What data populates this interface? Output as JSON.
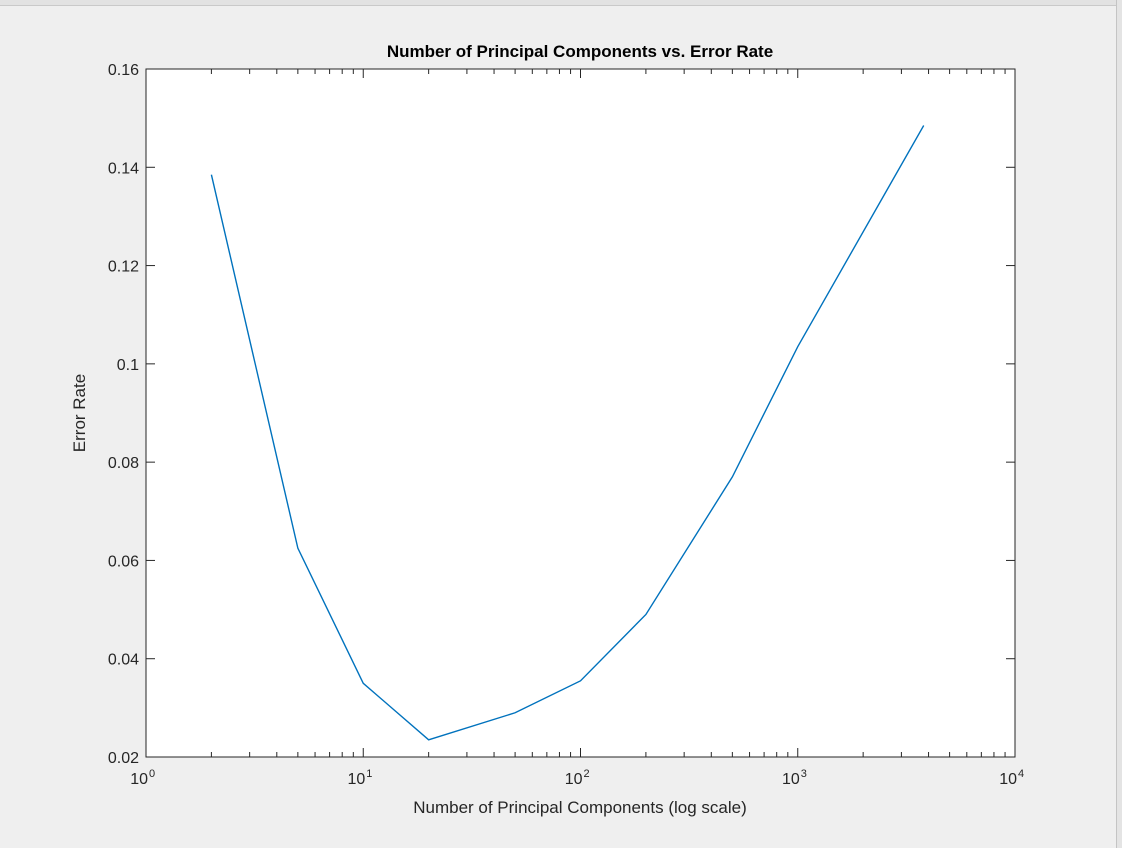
{
  "chart_data": {
    "type": "line",
    "title": "Number of Principal Components vs. Error Rate",
    "xlabel": "Number of Principal Components (log scale)",
    "ylabel": "Error Rate",
    "x_scale": "log",
    "xlim": [
      1,
      10000
    ],
    "ylim": [
      0.02,
      0.16
    ],
    "x_ticks": [
      {
        "value": 1,
        "base": "10",
        "exp": "0"
      },
      {
        "value": 10,
        "base": "10",
        "exp": "1"
      },
      {
        "value": 100,
        "base": "10",
        "exp": "2"
      },
      {
        "value": 1000,
        "base": "10",
        "exp": "3"
      },
      {
        "value": 10000,
        "base": "10",
        "exp": "4"
      }
    ],
    "y_ticks": [
      {
        "value": 0.02,
        "label": "0.02"
      },
      {
        "value": 0.04,
        "label": "0.04"
      },
      {
        "value": 0.06,
        "label": "0.06"
      },
      {
        "value": 0.08,
        "label": "0.08"
      },
      {
        "value": 0.1,
        "label": "0.1"
      },
      {
        "value": 0.12,
        "label": "0.12"
      },
      {
        "value": 0.14,
        "label": "0.14"
      },
      {
        "value": 0.16,
        "label": "0.16"
      }
    ],
    "grid": false,
    "series": [
      {
        "color": "#0072bd",
        "x": [
          2,
          5,
          10,
          20,
          50,
          100,
          200,
          500,
          1000,
          3800
        ],
        "y": [
          0.1385,
          0.0625,
          0.035,
          0.0235,
          0.029,
          0.0355,
          0.049,
          0.077,
          0.1035,
          0.1485
        ]
      }
    ]
  }
}
